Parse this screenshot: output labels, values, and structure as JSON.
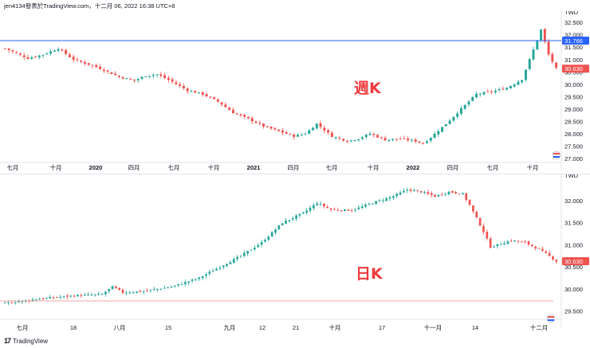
{
  "header": {
    "caption": "jen4134發表於TradingView.com，十二月 06, 2022 16:38 UTC+8"
  },
  "footer": {
    "logo_glyph": "17",
    "brand": "TradingView"
  },
  "colors": {
    "up": "#26a69a",
    "down": "#ef5350",
    "hline": "#2962ff",
    "label_red": "#ef3b3f"
  },
  "chart_data": [
    {
      "type": "candlestick",
      "title": "週K",
      "currency": "TWD",
      "ylim": [
        26.9,
        32.7
      ],
      "y_ticks": [
        "32.500",
        "32.000",
        "31.500",
        "31.000",
        "30.500",
        "30.000",
        "29.500",
        "29.000",
        "28.500",
        "28.000",
        "27.500",
        "27.000"
      ],
      "price_line": "31.766",
      "last_price": "30.630",
      "x_labels": [
        {
          "text": "七月",
          "bold": false
        },
        {
          "text": "十月",
          "bold": false
        },
        {
          "text": "2020",
          "bold": true
        },
        {
          "text": "四月",
          "bold": false
        },
        {
          "text": "七月",
          "bold": false
        },
        {
          "text": "十月",
          "bold": false
        },
        {
          "text": "2021",
          "bold": true
        },
        {
          "text": "四月",
          "bold": false
        },
        {
          "text": "七月",
          "bold": false
        },
        {
          "text": "十月",
          "bold": false
        },
        {
          "text": "2022",
          "bold": true
        },
        {
          "text": "四月",
          "bold": false
        },
        {
          "text": "七月",
          "bold": false
        },
        {
          "text": "十月",
          "bold": false
        }
      ],
      "close_path": [
        [
          0,
          31.45
        ],
        [
          6,
          31.05
        ],
        [
          10,
          31.2
        ],
        [
          14,
          31.45
        ],
        [
          18,
          31.0
        ],
        [
          24,
          30.7
        ],
        [
          30,
          30.3
        ],
        [
          34,
          30.15
        ],
        [
          37,
          30.35
        ],
        [
          40,
          30.4
        ],
        [
          44,
          30.1
        ],
        [
          48,
          29.75
        ],
        [
          52,
          29.6
        ],
        [
          56,
          29.3
        ],
        [
          60,
          28.85
        ],
        [
          64,
          28.6
        ],
        [
          68,
          28.3
        ],
        [
          72,
          28.1
        ],
        [
          76,
          27.9
        ],
        [
          79,
          28.0
        ],
        [
          82,
          28.4
        ],
        [
          86,
          27.9
        ],
        [
          90,
          27.7
        ],
        [
          93,
          27.8
        ],
        [
          96,
          28.0
        ],
        [
          100,
          27.75
        ],
        [
          104,
          27.8
        ],
        [
          108,
          27.7
        ],
        [
          110,
          27.6
        ],
        [
          112,
          27.85
        ],
        [
          116,
          28.4
        ],
        [
          120,
          29.0
        ],
        [
          124,
          29.6
        ],
        [
          128,
          29.7
        ],
        [
          132,
          29.85
        ],
        [
          136,
          30.2
        ],
        [
          139,
          31.4
        ],
        [
          141,
          32.2
        ],
        [
          143,
          31.2
        ],
        [
          145,
          30.63
        ]
      ],
      "high_marker": {
        "high": 32.4
      }
    },
    {
      "type": "candlestick",
      "title": "日K",
      "currency": "TWD",
      "ylim": [
        29.35,
        32.45
      ],
      "y_ticks": [
        "32.000",
        "31.500",
        "31.000",
        "30.500",
        "30.000",
        "29.500"
      ],
      "last_price": "30.630",
      "dotted_level": 29.73,
      "x_labels": [
        {
          "text": "七月",
          "bold": false
        },
        {
          "text": "18",
          "bold": false
        },
        {
          "text": "八月",
          "bold": false
        },
        {
          "text": "15",
          "bold": false
        },
        {
          "text": "九月",
          "bold": false
        },
        {
          "text": "12",
          "bold": false
        },
        {
          "text": "21",
          "bold": false
        },
        {
          "text": "十月",
          "bold": false
        },
        {
          "text": "17",
          "bold": false
        },
        {
          "text": "十一月",
          "bold": false
        },
        {
          "text": "14",
          "bold": false
        },
        {
          "text": "十二月",
          "bold": false
        }
      ],
      "close_path": [
        [
          0,
          29.68
        ],
        [
          10,
          29.78
        ],
        [
          20,
          29.85
        ],
        [
          28,
          29.88
        ],
        [
          31,
          30.05
        ],
        [
          34,
          29.92
        ],
        [
          40,
          29.95
        ],
        [
          48,
          30.05
        ],
        [
          56,
          30.25
        ],
        [
          62,
          30.5
        ],
        [
          68,
          30.75
        ],
        [
          74,
          31.05
        ],
        [
          80,
          31.5
        ],
        [
          86,
          31.72
        ],
        [
          90,
          31.95
        ],
        [
          94,
          31.8
        ],
        [
          100,
          31.78
        ],
        [
          106,
          31.95
        ],
        [
          112,
          32.1
        ],
        [
          116,
          32.25
        ],
        [
          120,
          32.2
        ],
        [
          124,
          32.1
        ],
        [
          128,
          32.2
        ],
        [
          132,
          32.15
        ],
        [
          134,
          31.9
        ],
        [
          138,
          31.3
        ],
        [
          140,
          30.95
        ],
        [
          146,
          31.1
        ],
        [
          150,
          31.05
        ],
        [
          154,
          30.9
        ],
        [
          156,
          30.8
        ],
        [
          159,
          30.63
        ]
      ]
    }
  ]
}
